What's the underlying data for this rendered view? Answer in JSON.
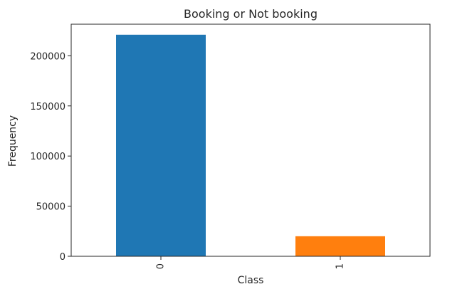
{
  "chart_data": {
    "type": "bar",
    "title": "Booking or Not booking",
    "xlabel": "Class",
    "ylabel": "Frequency",
    "categories": [
      "0",
      "1"
    ],
    "values": [
      221000,
      20000
    ],
    "colors": [
      "#1f77b4",
      "#ff7f0e"
    ],
    "ylim": [
      0,
      231500
    ],
    "yticks": [
      0,
      50000,
      100000,
      150000,
      200000
    ],
    "ytick_labels": [
      "0",
      "50000",
      "100000",
      "150000",
      "200000"
    ],
    "xtick_rotation": -90,
    "grid": false,
    "legend": "none"
  }
}
